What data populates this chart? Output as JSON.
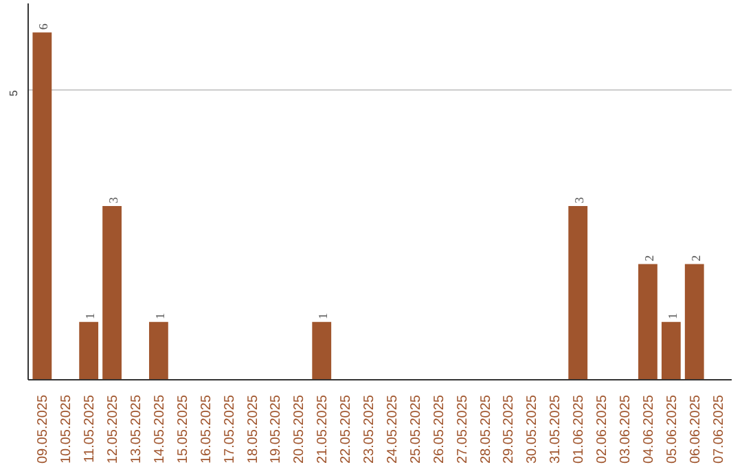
{
  "chart_data": {
    "type": "bar",
    "categories": [
      "09.05.2025",
      "10.05.2025",
      "11.05.2025",
      "12.05.2025",
      "13.05.2025",
      "14.05.2025",
      "15.05.2025",
      "16.05.2025",
      "17.05.2025",
      "18.05.2025",
      "19.05.2025",
      "20.05.2025",
      "21.05.2025",
      "22.05.2025",
      "23.05.2025",
      "24.05.2025",
      "25.05.2025",
      "26.05.2025",
      "27.05.2025",
      "28.05.2025",
      "29.05.2025",
      "30.05.2025",
      "31.05.2025",
      "01.06.2025",
      "02.06.2025",
      "03.06.2025",
      "04.06.2025",
      "05.06.2025",
      "06.06.2025",
      "07.06.2025"
    ],
    "values": [
      6,
      null,
      1,
      3,
      null,
      1,
      null,
      null,
      null,
      null,
      null,
      null,
      1,
      null,
      null,
      null,
      null,
      null,
      null,
      null,
      null,
      null,
      null,
      3,
      null,
      null,
      2,
      1,
      2,
      null
    ],
    "color": "#a0552d",
    "ylim": [
      0,
      6.5
    ],
    "yticks": [
      5
    ],
    "grid": "y",
    "data_labels": true
  }
}
